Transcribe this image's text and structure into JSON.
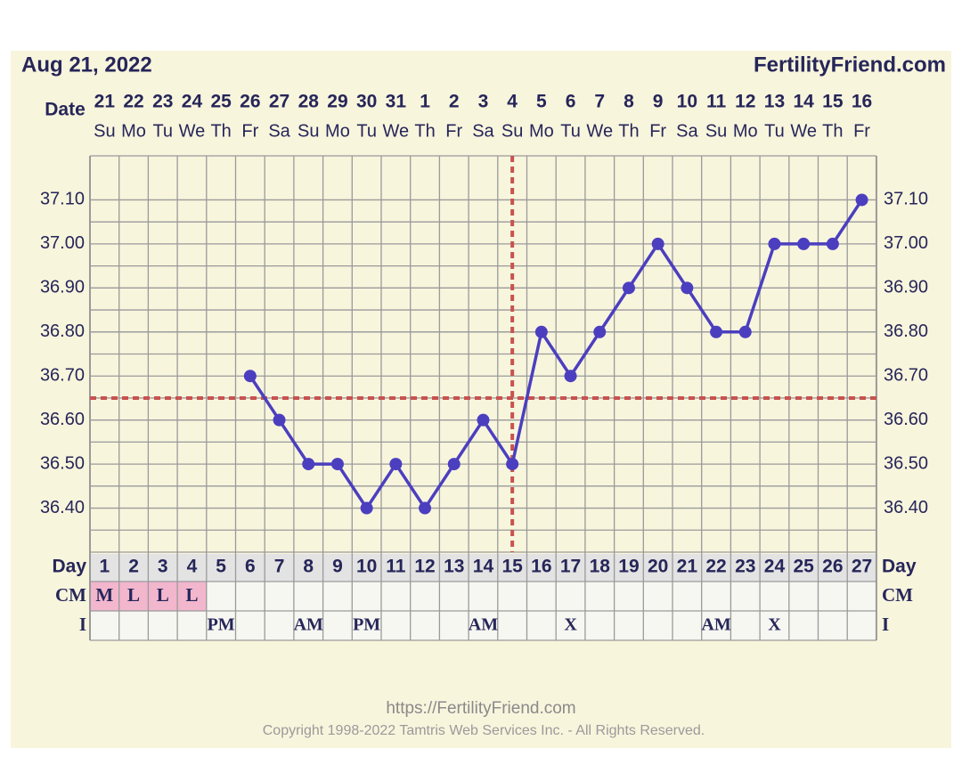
{
  "header": {
    "date": "Aug 21, 2022",
    "site": "FertilityFriend.com"
  },
  "chart_data": {
    "type": "line",
    "dates": [
      21,
      22,
      23,
      24,
      25,
      26,
      27,
      28,
      29,
      30,
      31,
      1,
      2,
      3,
      4,
      5,
      6,
      7,
      8,
      9,
      10,
      11,
      12,
      13,
      14,
      15,
      16
    ],
    "weekdays": [
      "Su",
      "Mo",
      "Tu",
      "We",
      "Th",
      "Fr",
      "Sa",
      "Su",
      "Mo",
      "Tu",
      "We",
      "Th",
      "Fr",
      "Sa",
      "Su",
      "Mo",
      "Tu",
      "We",
      "Th",
      "Fr",
      "Sa",
      "Su",
      "Mo",
      "Tu",
      "We",
      "Th",
      "Fr"
    ],
    "categories": [
      1,
      2,
      3,
      4,
      5,
      6,
      7,
      8,
      9,
      10,
      11,
      12,
      13,
      14,
      15,
      16,
      17,
      18,
      19,
      20,
      21,
      22,
      23,
      24,
      25,
      26,
      27
    ],
    "values": [
      null,
      null,
      null,
      null,
      null,
      36.7,
      36.6,
      36.5,
      36.5,
      36.4,
      36.5,
      36.4,
      36.5,
      36.6,
      36.5,
      36.8,
      36.7,
      36.8,
      36.9,
      37.0,
      36.9,
      36.8,
      36.8,
      37.0,
      37.0,
      37.0,
      37.1
    ],
    "color": "#4b3fbf",
    "ylim": [
      36.3,
      37.2
    ],
    "yticks": [
      {
        "value": 36.4,
        "label": "36.40"
      },
      {
        "value": 36.5,
        "label": "36.50"
      },
      {
        "value": 36.6,
        "label": "36.60"
      },
      {
        "value": 36.7,
        "label": "36.70"
      },
      {
        "value": 36.8,
        "label": "36.80"
      },
      {
        "value": 36.9,
        "label": "36.90"
      },
      {
        "value": 37.0,
        "label": "37.00"
      },
      {
        "value": 37.1,
        "label": "37.10"
      }
    ],
    "grid": true,
    "coverline": 36.65,
    "ovulation_day": 15,
    "marker_color": "#c8524f",
    "row_labels": {
      "date": "Date",
      "day": "Day",
      "cm": "CM",
      "i": "I"
    },
    "cm": [
      "M",
      "L",
      "L",
      "L",
      null,
      null,
      null,
      null,
      null,
      null,
      null,
      null,
      null,
      null,
      null,
      null,
      null,
      null,
      null,
      null,
      null,
      null,
      null,
      null,
      null,
      null,
      null
    ],
    "intercourse": [
      null,
      null,
      null,
      null,
      "PM",
      null,
      null,
      "AM",
      null,
      "PM",
      null,
      null,
      null,
      "AM",
      null,
      null,
      "X",
      null,
      null,
      null,
      null,
      "AM",
      null,
      "X",
      null,
      null,
      null
    ]
  },
  "footer": {
    "url": "https://FertilityFriend.com",
    "copyright": "Copyright 1998-2022 Tamtris Web Services Inc. - All Rights Reserved."
  }
}
